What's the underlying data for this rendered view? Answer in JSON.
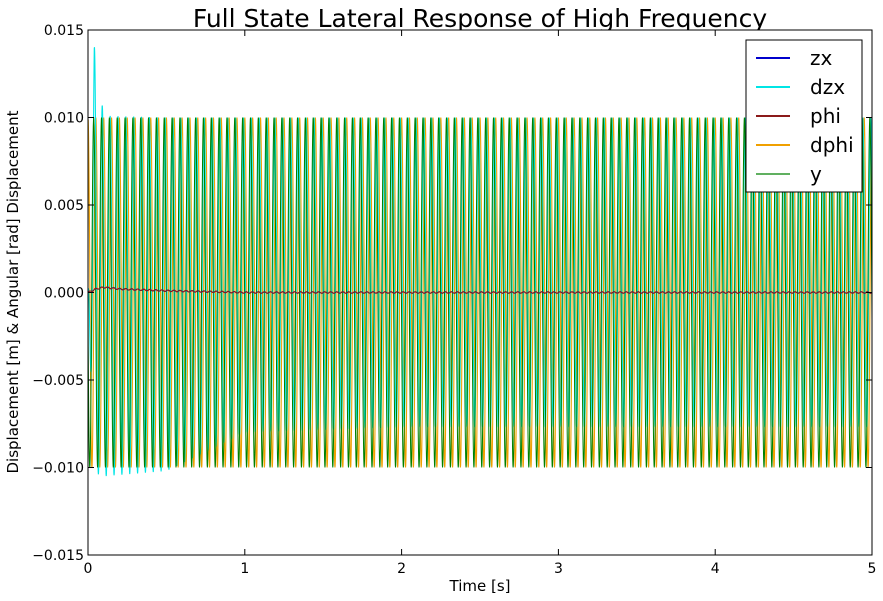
{
  "chart_data": {
    "type": "line",
    "title": "Full State Lateral Response of High Frequency",
    "xlabel": "Time [s]",
    "ylabel": "Displacement [m] & Angular [rad] Displacement",
    "xlim": [
      0,
      5
    ],
    "ylim": [
      -0.015,
      0.015
    ],
    "x_ticks": [
      0,
      1,
      2,
      3,
      4,
      5
    ],
    "x_tick_labels": [
      "0",
      "1",
      "2",
      "3",
      "4",
      "5"
    ],
    "y_ticks": [
      -0.015,
      -0.01,
      -0.005,
      0.0,
      0.005,
      0.01,
      0.015
    ],
    "y_tick_labels": [
      "−0.015",
      "−0.010",
      "−0.005",
      "0.000",
      "0.005",
      "0.010",
      "0.015"
    ],
    "grid": false,
    "legend_position": "top-right",
    "approx_oscillation_frequency_hz": 20,
    "series": [
      {
        "name": "zx",
        "color": "#0000cc",
        "description": "near-zero response",
        "x": [
          0,
          0.05,
          0.1,
          0.2,
          0.5,
          1,
          2,
          3,
          4,
          5
        ],
        "y": [
          0,
          0.0002,
          0.0003,
          0.0002,
          0.0001,
          0.0,
          0.0,
          0.0,
          0.0,
          0.0
        ]
      },
      {
        "name": "dzx",
        "color": "#00e5e5",
        "description": "oscillation between about -0.010 and 0.010, initial peak 0.014, negative envelope -0.0105 early settling to -0.0077",
        "x": [
          0,
          0.04,
          0.1,
          0.5,
          1,
          2,
          3,
          4,
          5
        ],
        "upper": [
          0.0,
          0.0141,
          0.0101,
          0.01,
          0.01,
          0.01,
          0.01,
          0.01,
          0.01
        ],
        "lower": [
          0.0,
          -0.0103,
          -0.0105,
          -0.0102,
          -0.008,
          -0.0077,
          -0.0077,
          -0.0077,
          -0.0077
        ]
      },
      {
        "name": "phi",
        "color": "#8b1a1a",
        "description": "near-zero response with small ripple",
        "x": [
          0,
          0.05,
          0.1,
          0.2,
          0.5,
          1,
          2,
          3,
          4,
          5
        ],
        "y": [
          0,
          0.0002,
          0.0003,
          0.0002,
          0.0001,
          0.0,
          0.0,
          0.0,
          0.0,
          0.0
        ]
      },
      {
        "name": "dphi",
        "color": "#f0a000",
        "description": "oscillation between -0.010 and 0.010",
        "x": [
          0,
          5
        ],
        "upper": [
          0.01,
          0.01
        ],
        "lower": [
          -0.01,
          -0.01
        ]
      },
      {
        "name": "y",
        "color": "#008000",
        "description": "oscillation between -0.010 and 0.010",
        "x": [
          0,
          5
        ],
        "upper": [
          0.01,
          0.01
        ],
        "lower": [
          -0.01,
          -0.01
        ]
      }
    ]
  }
}
